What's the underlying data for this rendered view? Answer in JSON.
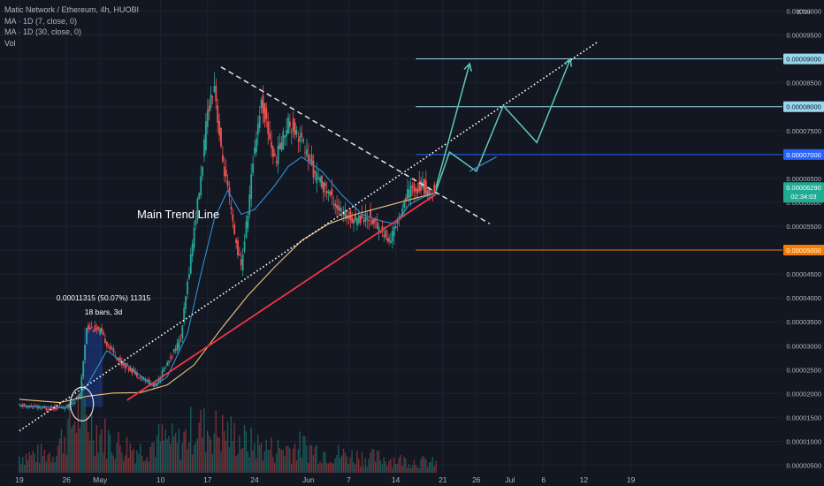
{
  "chart_data": {
    "type": "candlestick",
    "legend": [
      "Matic Network / Ethereum, 4h, HUOBI",
      "MA · 1D (7, close, 0)",
      "MA · 1D (30, close, 0)",
      "Vol"
    ],
    "currency": "ETH",
    "ylim": [
      2.88e-06,
      0.00010194
    ],
    "y_ticks": [
      "0.00010000",
      "0.00009500",
      "0.00009000",
      "0.00008500",
      "0.00008000",
      "0.00007500",
      "0.00007000",
      "0.00006500",
      "0.00006000",
      "0.00005500",
      "0.00005000",
      "0.00004500",
      "0.00004000",
      "0.00003500",
      "0.00003000",
      "0.00002500",
      "0.00002000",
      "0.00001500",
      "0.00001000",
      "0.00000500"
    ],
    "y_tick_values": [
      0.0001,
      9.5e-05,
      9e-05,
      8.5e-05,
      8e-05,
      7.5e-05,
      7e-05,
      6.5e-05,
      6e-05,
      5.5e-05,
      5e-05,
      4.5e-05,
      4e-05,
      3.5e-05,
      3e-05,
      2.5e-05,
      2e-05,
      1.5e-05,
      1e-05,
      5e-06
    ],
    "x_ticks": [
      "19",
      "26",
      "May",
      "10",
      "17",
      "24",
      "Jun",
      "7",
      "14",
      "21",
      "26",
      "Jul",
      "6",
      "12",
      "19"
    ],
    "x_tick_days": [
      0,
      7,
      12,
      21,
      28,
      35,
      43,
      49,
      56,
      63,
      68,
      73,
      78,
      84,
      91
    ],
    "price_tags": [
      {
        "text": "0.00009000",
        "value": 9e-05,
        "color": "#9ad8f0"
      },
      {
        "text": "0.00008000",
        "value": 8e-05,
        "color": "#9ad8f0"
      },
      {
        "text": "0.00007000",
        "value": 7e-05,
        "color": "#2962ff"
      },
      {
        "text": "0.00005000",
        "value": 5e-05,
        "color": "#f57c00"
      }
    ],
    "current_price": {
      "text": "0.00006290",
      "value": 6.29e-05,
      "countdown": "02:34:03",
      "color": "#22ab94"
    },
    "horizontal_levels": [
      {
        "value": 9e-05,
        "from_day": 59,
        "color": "#9ad8f0"
      },
      {
        "value": 8e-05,
        "from_day": 59,
        "color": "#9ad8f0"
      },
      {
        "value": 7e-05,
        "from_day": 59,
        "color": "#2962ff"
      },
      {
        "value": 5e-05,
        "from_day": 59,
        "color": "#f57c00"
      }
    ],
    "annotations": {
      "main_trend_line_label": "Main Trend Line",
      "measure_label_1": "0.00011315 (50.07%) 11315",
      "measure_label_2": "18 bars, 3d",
      "main_trend_line": {
        "from": [
          16,
          1.86e-05
        ],
        "to": [
          62,
          6.17e-05
        ]
      },
      "dotted_trend_line": {
        "from": [
          0,
          1.22e-05
        ],
        "to": [
          86,
          9.35e-05
        ]
      },
      "dashed_resistance": {
        "from": [
          30,
          8.83e-05
        ],
        "to": [
          70,
          5.55e-05
        ]
      },
      "projection_path_a": [
        [
          62,
          6.24e-05
        ],
        [
          64,
          7.05e-05
        ],
        [
          68,
          6.65e-05
        ],
        [
          72,
          8.02e-05
        ],
        [
          77,
          7.25e-05
        ],
        [
          82,
          9e-05
        ]
      ],
      "projection_path_b": [
        [
          62,
          6.32e-05
        ],
        [
          67,
          8.9e-05
        ]
      ],
      "blue_projection": [
        [
          67,
          6.65e-05
        ],
        [
          71,
          6.95e-05
        ]
      ]
    },
    "price_path": [
      [
        0,
        1.75e-05
      ],
      [
        4,
        1.68e-05
      ],
      [
        7,
        1.72e-05
      ],
      [
        9,
        1.95e-05
      ],
      [
        10,
        3.4e-05
      ],
      [
        12,
        3.3e-05
      ],
      [
        13,
        3.05e-05
      ],
      [
        15,
        2.65e-05
      ],
      [
        18,
        2.35e-05
      ],
      [
        20,
        2.15e-05
      ],
      [
        21,
        2.38e-05
      ],
      [
        24,
        3.15e-05
      ],
      [
        26,
        5.45e-05
      ],
      [
        27,
        6.5e-05
      ],
      [
        28,
        7.9e-05
      ],
      [
        29,
        8.5e-05
      ],
      [
        30,
        7.05e-05
      ],
      [
        31,
        6.25e-05
      ],
      [
        32,
        5.3e-05
      ],
      [
        33,
        4.65e-05
      ],
      [
        34,
        5.8e-05
      ],
      [
        35,
        7.2e-05
      ],
      [
        36,
        8.1e-05
      ],
      [
        37,
        7.5e-05
      ],
      [
        38,
        6.85e-05
      ],
      [
        40,
        7.7e-05
      ],
      [
        42,
        7.3e-05
      ],
      [
        44,
        6.55e-05
      ],
      [
        46,
        6.2e-05
      ],
      [
        48,
        5.75e-05
      ],
      [
        50,
        5.65e-05
      ],
      [
        52,
        5.7e-05
      ],
      [
        54,
        5.38e-05
      ],
      [
        55,
        5.15e-05
      ],
      [
        57,
        5.9e-05
      ],
      [
        58,
        6.25e-05
      ],
      [
        60,
        6.35e-05
      ],
      [
        61,
        6.15e-05
      ],
      [
        62,
        6.3e-05
      ]
    ],
    "ma7_path": [
      [
        0,
        1.75e-05
      ],
      [
        7,
        1.7e-05
      ],
      [
        10,
        2.15e-05
      ],
      [
        13,
        2.9e-05
      ],
      [
        16,
        2.6e-05
      ],
      [
        20,
        2.15e-05
      ],
      [
        22,
        2.35e-05
      ],
      [
        25,
        3.25e-05
      ],
      [
        27,
        4.5e-05
      ],
      [
        29,
        5.65e-05
      ],
      [
        31,
        6.25e-05
      ],
      [
        33,
        5.75e-05
      ],
      [
        35,
        5.85e-05
      ],
      [
        38,
        6.35e-05
      ],
      [
        40,
        6.75e-05
      ],
      [
        42,
        6.95e-05
      ],
      [
        45,
        6.65e-05
      ],
      [
        48,
        6.15e-05
      ],
      [
        51,
        5.75e-05
      ],
      [
        54,
        5.6e-05
      ],
      [
        56,
        5.55e-05
      ],
      [
        58,
        5.95e-05
      ],
      [
        60,
        6.1e-05
      ],
      [
        62,
        6.2e-05
      ]
    ],
    "ma30_path": [
      [
        0,
        1.88e-05
      ],
      [
        6,
        1.81e-05
      ],
      [
        10,
        1.94e-05
      ],
      [
        14,
        2.01e-05
      ],
      [
        18,
        2.02e-05
      ],
      [
        22,
        2.18e-05
      ],
      [
        26,
        2.6e-05
      ],
      [
        30,
        3.35e-05
      ],
      [
        34,
        4.05e-05
      ],
      [
        38,
        4.65e-05
      ],
      [
        42,
        5.2e-05
      ],
      [
        46,
        5.55e-05
      ],
      [
        50,
        5.75e-05
      ],
      [
        54,
        5.9e-05
      ],
      [
        58,
        6.05e-05
      ],
      [
        62,
        6.2e-05
      ]
    ],
    "volume_envelope": [
      [
        0,
        0.25
      ],
      [
        5,
        0.3
      ],
      [
        9,
        0.95
      ],
      [
        11,
        0.7
      ],
      [
        14,
        0.45
      ],
      [
        18,
        0.35
      ],
      [
        21,
        0.5
      ],
      [
        24,
        0.45
      ],
      [
        26,
        0.7
      ],
      [
        28,
        0.65
      ],
      [
        31,
        0.6
      ],
      [
        34,
        0.45
      ],
      [
        38,
        0.35
      ],
      [
        42,
        0.4
      ],
      [
        46,
        0.3
      ],
      [
        50,
        0.25
      ],
      [
        54,
        0.22
      ],
      [
        58,
        0.18
      ],
      [
        62,
        0.15
      ]
    ]
  }
}
